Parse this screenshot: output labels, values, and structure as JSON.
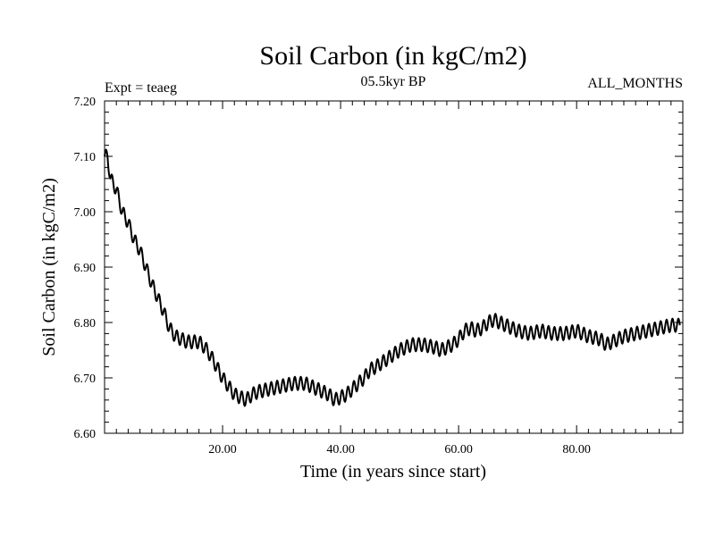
{
  "chart_data": {
    "type": "line",
    "title": "Soil Carbon (in kgC/m2)",
    "subtitle": "05.5kyr BP",
    "left_label": "Expt = teaeg",
    "right_label": "ALL_MONTHS",
    "xlabel": "Time (in years since start)",
    "ylabel": "Soil Carbon (in kgC/m2)",
    "xlim": [
      0,
      98
    ],
    "ylim": [
      6.6,
      7.2
    ],
    "x_ticks": [
      {
        "value": 20,
        "label": "20.00"
      },
      {
        "value": 40,
        "label": "40.00"
      },
      {
        "value": 60,
        "label": "60.00"
      },
      {
        "value": 80,
        "label": "80.00"
      }
    ],
    "y_ticks": [
      {
        "value": 6.6,
        "label": "6.60"
      },
      {
        "value": 6.7,
        "label": "6.70"
      },
      {
        "value": 6.8,
        "label": "6.80"
      },
      {
        "value": 6.9,
        "label": "6.90"
      },
      {
        "value": 7.0,
        "label": "7.00"
      },
      {
        "value": 7.1,
        "label": "7.10"
      },
      {
        "value": 7.2,
        "label": "7.20"
      }
    ],
    "series": [
      {
        "name": "Soil Carbon",
        "color": "#000000",
        "seasonal_amplitude": 0.012,
        "x": [
          0,
          0.5,
          1,
          2,
          3,
          4,
          5,
          6,
          7,
          8,
          9,
          10,
          11,
          12,
          14,
          16,
          17,
          18,
          19,
          20,
          21,
          22,
          23,
          24,
          25,
          26,
          28,
          30,
          32,
          34,
          35,
          36,
          37,
          38,
          39,
          40,
          41,
          42,
          43,
          44,
          45,
          46,
          48,
          50,
          52,
          54,
          56,
          57,
          58,
          59,
          60,
          61,
          62,
          63,
          64,
          65,
          66,
          67,
          68,
          69,
          70,
          72,
          74,
          76,
          78,
          80,
          82,
          84,
          85,
          86,
          87,
          88,
          90,
          92,
          94,
          96,
          97.5
        ],
        "y": [
          7.1,
          7.1,
          7.06,
          7.04,
          7.0,
          6.98,
          6.95,
          6.93,
          6.9,
          6.87,
          6.845,
          6.82,
          6.79,
          6.775,
          6.765,
          6.765,
          6.755,
          6.74,
          6.72,
          6.7,
          6.685,
          6.67,
          6.665,
          6.66,
          6.67,
          6.675,
          6.68,
          6.685,
          6.69,
          6.69,
          6.685,
          6.68,
          6.675,
          6.67,
          6.66,
          6.665,
          6.67,
          6.68,
          6.69,
          6.7,
          6.715,
          6.72,
          6.735,
          6.75,
          6.76,
          6.76,
          6.755,
          6.75,
          6.755,
          6.76,
          6.77,
          6.785,
          6.79,
          6.785,
          6.79,
          6.8,
          6.805,
          6.8,
          6.795,
          6.79,
          6.785,
          6.78,
          6.785,
          6.78,
          6.78,
          6.785,
          6.775,
          6.77,
          6.76,
          6.765,
          6.77,
          6.775,
          6.78,
          6.785,
          6.79,
          6.795,
          6.795
        ]
      }
    ]
  }
}
